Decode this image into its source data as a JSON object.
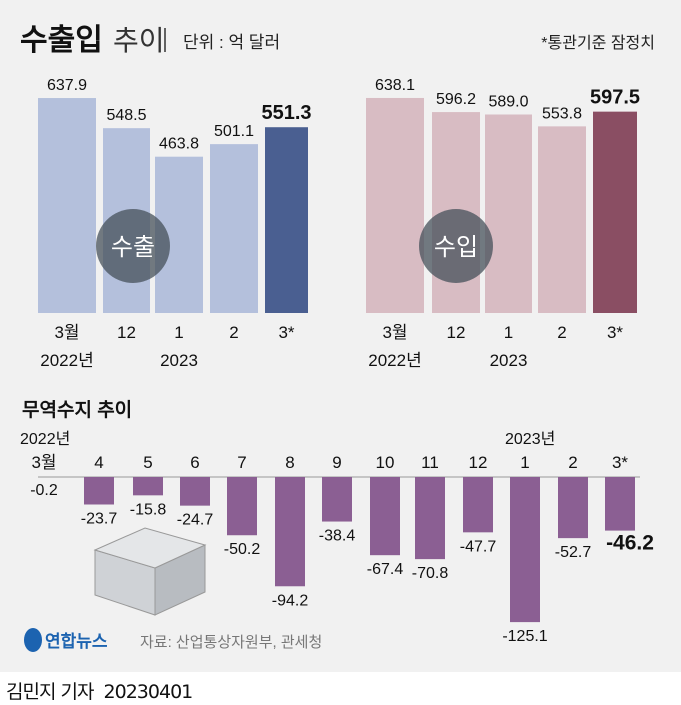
{
  "title_bold": "수출입",
  "title_light": "추이",
  "unit": "단위 : 억 달러",
  "note": "*통관기준 잠정치",
  "source": "자료: 산업통상자원부, 관세청",
  "logo": "연합뉴스",
  "footer": {
    "author": "김민지 기자",
    "date": "20230401"
  },
  "colors": {
    "export": "#b4c0dc",
    "export_last": "#4a5f91",
    "import": "#d8bcc3",
    "import_last": "#8a4e63",
    "balance": "#8b5f93",
    "background": "#f1f1f1"
  },
  "chart_data": [
    {
      "type": "bar",
      "title": "수출",
      "categories": [
        "3월",
        "12",
        "1",
        "2",
        "3*"
      ],
      "year_labels": [
        "2022년",
        "",
        "2023",
        "",
        ""
      ],
      "values": [
        637.9,
        548.5,
        463.8,
        501.1,
        551.3
      ]
    },
    {
      "type": "bar",
      "title": "수입",
      "categories": [
        "3월",
        "12",
        "1",
        "2",
        "3*"
      ],
      "year_labels": [
        "2022년",
        "",
        "2023",
        "",
        ""
      ],
      "values": [
        638.1,
        596.2,
        589.0,
        553.8,
        597.5
      ]
    },
    {
      "type": "bar",
      "title": "무역수지 추이",
      "categories": [
        "3월",
        "4",
        "5",
        "6",
        "7",
        "8",
        "9",
        "10",
        "11",
        "12",
        "1",
        "2",
        "3*"
      ],
      "year_labels": [
        "2022년",
        "",
        "",
        "",
        "",
        "",
        "",
        "",
        "",
        "",
        "2023년",
        "",
        ""
      ],
      "values": [
        -0.2,
        -23.7,
        -15.8,
        -24.7,
        -50.2,
        -94.2,
        -38.4,
        -67.4,
        -70.8,
        -47.7,
        -125.1,
        -52.7,
        -46.2
      ]
    }
  ]
}
